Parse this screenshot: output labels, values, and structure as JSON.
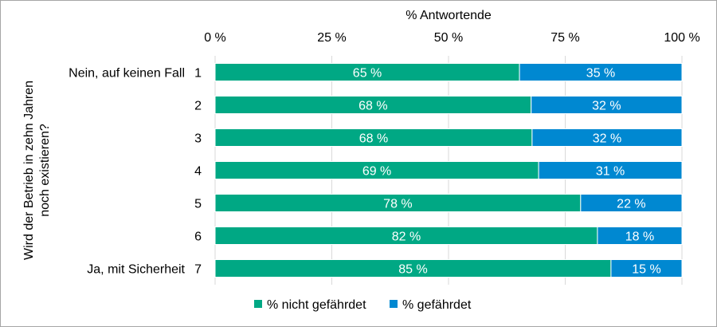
{
  "chart_data": {
    "type": "bar",
    "orientation": "horizontal",
    "stacked": true,
    "xlabel": "% Antwortende",
    "ylabel": "Wird der Betrieb in zehn Jahren noch existieren?",
    "xlim": [
      0,
      100
    ],
    "xticks": [
      "0 %",
      "25 %",
      "50 %",
      "75 %",
      "100 %"
    ],
    "grid": true,
    "legend_position": "bottom",
    "categories": [
      "1",
      "2",
      "3",
      "4",
      "5",
      "6",
      "7"
    ],
    "category_annotations": {
      "1": "Nein, auf keinen Fall",
      "7": "Ja, mit Sicherheit"
    },
    "series": [
      {
        "name": "% nicht gefährdet",
        "color": "#00A884",
        "values": [
          65.2,
          67.7,
          67.9,
          69.3,
          78.3,
          81.9,
          84.8
        ],
        "labels": [
          "65 %",
          "68 %",
          "68 %",
          "69 %",
          "78 %",
          "82 %",
          "85 %"
        ]
      },
      {
        "name": "% gefährdet",
        "color": "#0088D1",
        "values": [
          34.8,
          32.3,
          32.1,
          30.7,
          21.7,
          18.1,
          15.2
        ],
        "labels": [
          "35 %",
          "32 %",
          "32 %",
          "31 %",
          "22 %",
          "18 %",
          "15 %"
        ]
      }
    ]
  }
}
